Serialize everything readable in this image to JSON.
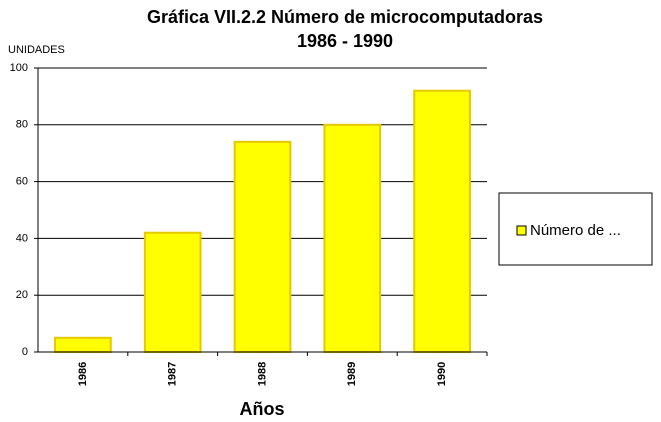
{
  "chart_data": {
    "type": "bar",
    "title": "Gráfica VII.2.2 Número de microcomputadoras",
    "subtitle": "1986 - 1990",
    "y_label": "UNIDADES",
    "x_label": "Años",
    "categories": [
      "1986",
      "1987",
      "1988",
      "1989",
      "1990"
    ],
    "series": [
      {
        "name": "Número de ...",
        "color": "#ffff00",
        "values": [
          5,
          42,
          74,
          80,
          92
        ]
      }
    ],
    "ylim": [
      0,
      100
    ],
    "yticks": [
      0,
      20,
      40,
      60,
      80,
      100
    ],
    "grid": true,
    "legend": "right"
  }
}
